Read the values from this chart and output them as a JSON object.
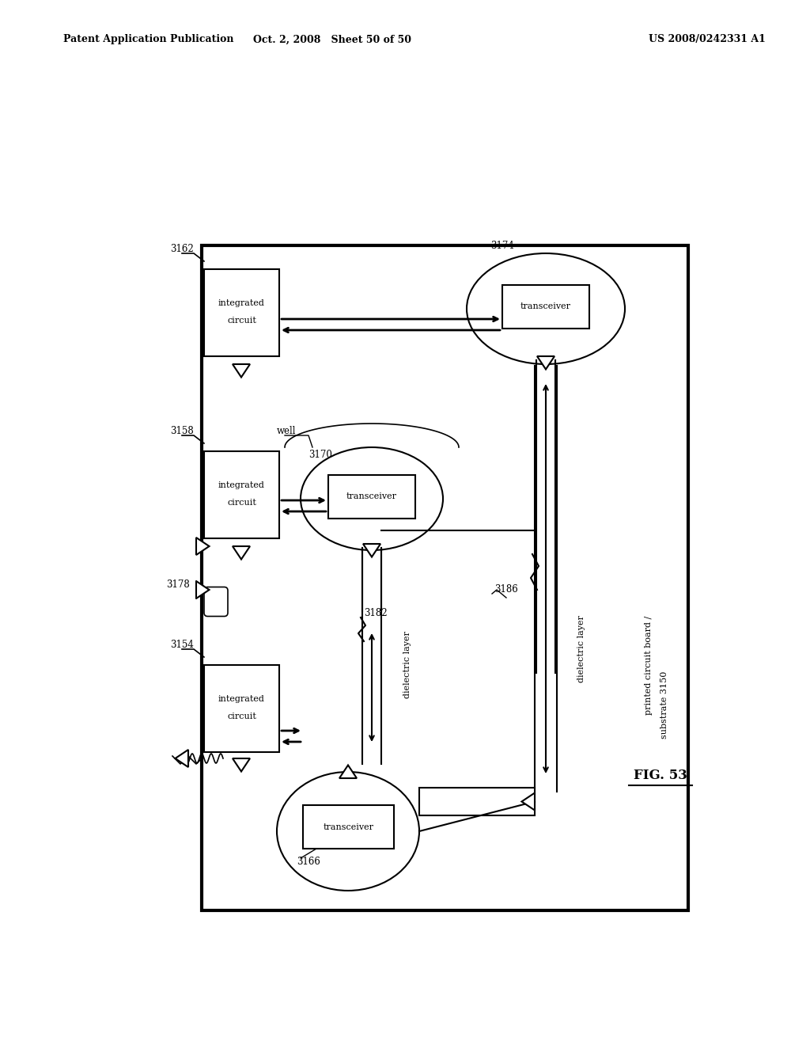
{
  "bg_color": "#ffffff",
  "title_left": "Patent Application Publication",
  "title_center": "Oct. 2, 2008   Sheet 50 of 50",
  "title_right": "US 2008/0242331 A1",
  "fig_label": "FIG. 53"
}
